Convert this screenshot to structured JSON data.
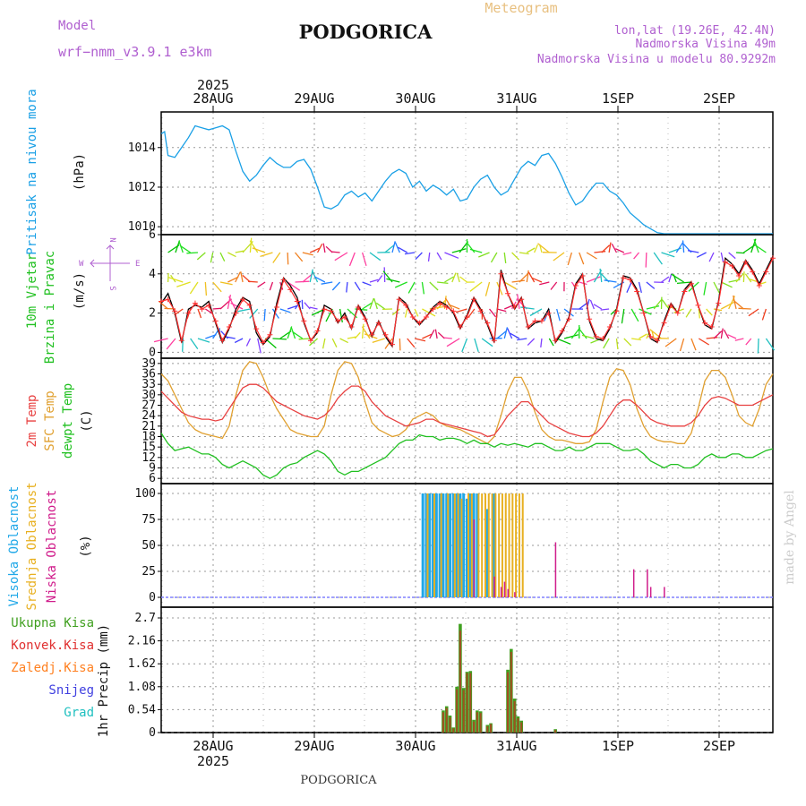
{
  "header": {
    "model_label": "Model",
    "model_name": "wrf−nmm_v3.9.1 e3km",
    "city": "PODGORICA",
    "meteogram": "Meteogram",
    "lonlat": "lon,lat (19.26E, 42.4N)",
    "elevation": "Nadmorska Visina 49m",
    "model_elevation": "Nadmorska Visina u modelu 80.9292m",
    "footer_city": "PODGORICA",
    "credit": "made by Angel"
  },
  "time_axis": {
    "year": "2025",
    "labels": [
      "28AUG",
      "29AUG",
      "30AUG",
      "31AUG",
      "1SEP",
      "2SEP"
    ]
  },
  "colors": {
    "pressure": "#1aa0e6",
    "wind_speed": "#000000",
    "gust": "#ff3030",
    "temp2m": "#e84040",
    "sfc": "#e0a030",
    "dew": "#20c020",
    "cloud_high": "#20a8e8",
    "cloud_mid": "#e8b020",
    "cloud_low": "#d01c8b",
    "precip_total": "#40a020",
    "precip_conv": "#e03030",
    "precip_frz": "#ff8020",
    "snow": "#4040e0",
    "graupel": "#20c0c0"
  },
  "chart_data": [
    {
      "type": "line",
      "id": "pressure",
      "ylabel_name": "Pritisak na nivou mora",
      "ylabel_unit": "(hPa)",
      "ylim": [
        1009.6,
        1015.8
      ],
      "yticks": [
        "1010",
        "1012",
        "1014"
      ],
      "x_hours": [
        0,
        1,
        2,
        4,
        6,
        8,
        10,
        12,
        14,
        16,
        18,
        20,
        22,
        24,
        26,
        28,
        30,
        32,
        34,
        36,
        38,
        40,
        42,
        44,
        46,
        48,
        50,
        52,
        54,
        56,
        58,
        60,
        62,
        64,
        66,
        68,
        70,
        72,
        74,
        76,
        78,
        80,
        82,
        84,
        86,
        88,
        90,
        92,
        94,
        96,
        98,
        100,
        102,
        104,
        106,
        108,
        110,
        112,
        114,
        116,
        118,
        120,
        122,
        124,
        126,
        128,
        130,
        132,
        134,
        136,
        138,
        140,
        142,
        144,
        146,
        148,
        150,
        152,
        154,
        156,
        158,
        160,
        162,
        164,
        166,
        168,
        170,
        172,
        174,
        176,
        178,
        180
      ],
      "values": [
        1014.7,
        1014.8,
        1013.6,
        1013.5,
        1014.0,
        1014.5,
        1015.1,
        1015.0,
        1014.9,
        1015.0,
        1015.1,
        1014.9,
        1013.8,
        1012.8,
        1012.3,
        1012.6,
        1013.1,
        1013.5,
        1013.2,
        1013.0,
        1013.0,
        1013.3,
        1013.4,
        1012.9,
        1012.0,
        1011.0,
        1010.9,
        1011.1,
        1011.6,
        1011.8,
        1011.5,
        1011.7,
        1011.3,
        1011.8,
        1012.3,
        1012.7,
        1012.9,
        1012.7,
        1012.0,
        1012.3,
        1011.8,
        1012.1,
        1011.9,
        1011.6,
        1011.9,
        1011.3,
        1011.4,
        1012.0,
        1012.4,
        1012.6,
        1012.0,
        1011.6,
        1011.8,
        1012.4,
        1013.0,
        1013.3,
        1013.1,
        1013.6,
        1013.7,
        1013.2,
        1012.5,
        1011.7,
        1011.1,
        1011.3,
        1011.8,
        1012.2,
        1012.2,
        1011.8,
        1011.6,
        1011.2,
        1010.7,
        1010.4,
        1010.1,
        1009.9,
        1009.7,
        1009.6,
        1009.6,
        1009.6,
        1009.6,
        1009.6,
        1009.6,
        1009.6,
        1009.6,
        1009.6,
        1009.6,
        1009.6,
        1009.6,
        1009.6,
        1009.6,
        1009.6,
        1009.6,
        1009.6
      ]
    },
    {
      "type": "line",
      "id": "wind",
      "ylabel_name": "10m Vjetar",
      "ylabel_name2": "Brzina i Pravac",
      "ylabel_unit": "(m/s)",
      "compass": {
        "n": "N",
        "s": "S",
        "e": "E",
        "w": "W"
      },
      "ylim": [
        -0.3,
        6
      ],
      "yticks": [
        "0",
        "2",
        "4",
        "6"
      ],
      "x_hours": [
        0,
        2,
        4,
        6,
        8,
        10,
        12,
        14,
        16,
        18,
        20,
        22,
        24,
        26,
        28,
        30,
        32,
        34,
        36,
        38,
        40,
        42,
        44,
        46,
        48,
        50,
        52,
        54,
        56,
        58,
        60,
        62,
        64,
        66,
        68,
        70,
        72,
        74,
        76,
        78,
        80,
        82,
        84,
        86,
        88,
        90,
        92,
        94,
        96,
        98,
        100,
        102,
        104,
        106,
        108,
        110,
        112,
        114,
        116,
        118,
        120,
        122,
        124,
        126,
        128,
        130,
        132,
        134,
        136,
        138,
        140,
        142,
        144,
        146,
        148,
        150,
        152,
        154,
        156,
        158,
        160,
        162,
        164,
        166,
        168,
        170,
        172,
        174,
        176,
        178,
        180
      ],
      "speed": [
        2.5,
        3.0,
        2.0,
        0.5,
        2.2,
        2.4,
        2.3,
        2.6,
        1.5,
        0.5,
        1.2,
        2.2,
        2.8,
        2.6,
        1.0,
        0.4,
        0.8,
        2.5,
        3.8,
        3.4,
        2.8,
        1.5,
        0.6,
        1.0,
        2.4,
        2.2,
        1.5,
        2.0,
        1.2,
        2.4,
        1.8,
        0.8,
        1.6,
        0.8,
        0.3,
        2.8,
        2.5,
        1.8,
        1.4,
        1.8,
        2.3,
        2.6,
        2.4,
        2.0,
        1.2,
        1.9,
        2.8,
        2.2,
        1.4,
        0.5,
        4.2,
        3.0,
        2.2,
        2.8,
        1.2,
        1.5,
        1.6,
        2.2,
        0.5,
        1.0,
        1.8,
        3.5,
        4.0,
        1.6,
        0.7,
        0.6,
        1.2,
        2.2,
        3.9,
        3.8,
        3.2,
        2.0,
        0.7,
        0.5,
        1.6,
        2.5,
        2.0,
        3.2,
        3.6,
        2.4,
        1.4,
        1.2,
        2.6,
        4.8,
        4.5,
        4.0,
        4.7,
        4.2,
        3.5,
        4.2,
        4.9
      ],
      "gust": [
        2.6,
        2.7,
        2.1,
        0.6,
        2.0,
        2.5,
        2.2,
        2.4,
        1.6,
        0.6,
        1.3,
        2.0,
        2.7,
        2.4,
        1.2,
        0.5,
        0.9,
        2.3,
        3.7,
        3.2,
        2.6,
        1.6,
        0.6,
        1.1,
        2.2,
        2.1,
        1.6,
        1.8,
        1.3,
        2.3,
        1.7,
        0.9,
        1.5,
        0.9,
        0.4,
        2.7,
        2.4,
        1.8,
        1.5,
        1.8,
        2.2,
        2.5,
        2.3,
        2.1,
        1.3,
        1.8,
        2.7,
        2.1,
        1.5,
        0.6,
        4.0,
        3.0,
        2.3,
        2.7,
        1.3,
        1.6,
        1.6,
        2.0,
        0.6,
        1.1,
        1.7,
        3.4,
        3.9,
        1.7,
        0.8,
        0.7,
        1.3,
        2.1,
        3.8,
        3.7,
        3.1,
        2.0,
        0.8,
        0.6,
        1.5,
        2.4,
        2.0,
        3.1,
        3.5,
        2.4,
        1.5,
        1.3,
        2.5,
        4.6,
        4.4,
        3.9,
        4.6,
        4.1,
        3.4,
        4.1,
        4.8
      ],
      "arrow_colors": [
        "#00c000",
        "#20e020",
        "#80e020",
        "#c0e020",
        "#e0e020",
        "#f0c020",
        "#f08020",
        "#f04020",
        "#e01060",
        "#ff40a0",
        "#20c0c0",
        "#2080ff",
        "#4040ff",
        "#8040ff"
      ]
    },
    {
      "type": "line",
      "id": "temperature",
      "ylabel_name": "2m Temp",
      "ylabel_name2": "SFC Temp",
      "ylabel_name3": "dewpt Temp",
      "ylabel_unit": "(C)",
      "ylim": [
        4.5,
        40.5
      ],
      "yticks": [
        "6",
        "9",
        "12",
        "15",
        "18",
        "21",
        "24",
        "27",
        "30",
        "33",
        "36",
        "39"
      ],
      "x_hours": [
        0,
        2,
        4,
        6,
        8,
        10,
        12,
        14,
        16,
        18,
        20,
        22,
        24,
        26,
        28,
        30,
        32,
        34,
        36,
        38,
        40,
        42,
        44,
        46,
        48,
        50,
        52,
        54,
        56,
        58,
        60,
        62,
        64,
        66,
        68,
        70,
        72,
        74,
        76,
        78,
        80,
        82,
        84,
        86,
        88,
        90,
        92,
        94,
        96,
        98,
        100,
        102,
        104,
        106,
        108,
        110,
        112,
        114,
        116,
        118,
        120,
        122,
        124,
        126,
        128,
        130,
        132,
        134,
        136,
        138,
        140,
        142,
        144,
        146,
        148,
        150,
        152,
        154,
        156,
        158,
        160,
        162,
        164,
        166,
        168,
        170,
        172,
        174,
        176,
        178,
        180
      ],
      "temp2m": [
        31,
        29,
        27,
        25,
        24,
        23.5,
        23,
        23,
        22.5,
        23,
        26,
        29,
        32,
        33,
        33,
        32,
        30,
        28,
        27,
        26,
        25,
        24,
        23.5,
        23,
        24,
        26,
        29,
        31,
        32.5,
        32.5,
        31,
        28,
        26,
        24,
        23,
        22,
        21,
        21.5,
        22,
        23,
        23,
        22,
        21.5,
        21,
        20.5,
        20,
        19.5,
        19,
        18,
        18.5,
        21,
        24,
        26,
        28,
        28,
        26,
        24,
        22,
        21,
        20,
        19,
        18.5,
        18,
        18,
        19,
        21,
        24,
        27,
        28.5,
        28.5,
        27,
        25,
        23,
        22,
        21.5,
        21,
        21,
        21,
        22,
        24,
        27,
        29,
        29.5,
        29,
        28,
        27,
        27,
        27,
        28,
        29,
        30
      ],
      "sfc": [
        36,
        34,
        30,
        26,
        22,
        20,
        19,
        18.5,
        18,
        17.5,
        21,
        30,
        37,
        39.5,
        39,
        35,
        30,
        26,
        23,
        20,
        19,
        18.5,
        18,
        18,
        21,
        30,
        37,
        39.5,
        39,
        35,
        28,
        22,
        20,
        19,
        18,
        18.5,
        20,
        23,
        24,
        25,
        24,
        22,
        21,
        20.5,
        20,
        19,
        18,
        17,
        16,
        18,
        24,
        31,
        35,
        35,
        31,
        25,
        20,
        18,
        17,
        17,
        16.5,
        16,
        16,
        16.5,
        20,
        28,
        35,
        37.5,
        37,
        33,
        26,
        21,
        18,
        17,
        16.5,
        16.5,
        16,
        16,
        19,
        26,
        34,
        37,
        37,
        35,
        30,
        24,
        22,
        21,
        26,
        33,
        36
      ],
      "dewpt": [
        19,
        16,
        14,
        14.5,
        15,
        14,
        13,
        13,
        12,
        10,
        9,
        10,
        11,
        10,
        9,
        7,
        6,
        7,
        9,
        10,
        10.5,
        12,
        13,
        14,
        13,
        11,
        8,
        7,
        8,
        8,
        9,
        10,
        11,
        12,
        14,
        16,
        17,
        17,
        18.5,
        18,
        18,
        17,
        17.5,
        17.5,
        17,
        16,
        17,
        16,
        16,
        15,
        16,
        15.5,
        16,
        15.5,
        15,
        16,
        16,
        15,
        14,
        14,
        15,
        14,
        14,
        15,
        16,
        16,
        16,
        15,
        14,
        14,
        14.5,
        13,
        11,
        10,
        9,
        10,
        10,
        9,
        9,
        10,
        12,
        13,
        12,
        12,
        13,
        13,
        12,
        12,
        13,
        14,
        14.5
      ]
    },
    {
      "type": "bar",
      "id": "clouds",
      "ylabel_name": "Visoka Oblacnost",
      "ylabel_name2": "Srednja Oblacnost",
      "ylabel_name3": "Niska Oblacnost",
      "ylabel_unit": "(%)",
      "ylim": [
        0,
        100
      ],
      "yticks": [
        "0",
        "25",
        "50",
        "75",
        "100"
      ],
      "high": [
        [
          77,
          100
        ],
        [
          78,
          100
        ],
        [
          79,
          100
        ],
        [
          80,
          100
        ],
        [
          81,
          100
        ],
        [
          82,
          100
        ],
        [
          83,
          100
        ],
        [
          84,
          100
        ],
        [
          85,
          100
        ],
        [
          86,
          100
        ],
        [
          87,
          100
        ],
        [
          88,
          100
        ],
        [
          89,
          100
        ],
        [
          90,
          95
        ],
        [
          91,
          100
        ],
        [
          92,
          100
        ],
        [
          93,
          100
        ],
        [
          96,
          85
        ],
        [
          98,
          100
        ]
      ],
      "mid": [
        [
          78,
          100
        ],
        [
          80,
          100
        ],
        [
          82,
          100
        ],
        [
          84,
          100
        ],
        [
          86,
          100
        ],
        [
          87,
          100
        ],
        [
          88,
          95
        ],
        [
          90,
          100
        ],
        [
          91,
          100
        ],
        [
          93,
          100
        ],
        [
          94,
          100
        ],
        [
          95,
          100
        ],
        [
          96,
          100
        ],
        [
          97,
          100
        ],
        [
          98,
          100
        ],
        [
          99,
          100
        ],
        [
          100,
          100
        ],
        [
          101,
          100
        ],
        [
          102,
          100
        ],
        [
          103,
          100
        ],
        [
          104,
          100
        ],
        [
          105,
          100
        ],
        [
          106,
          100
        ]
      ],
      "low": [
        [
          92,
          75
        ],
        [
          98,
          20
        ],
        [
          100,
          10
        ],
        [
          101,
          15
        ],
        [
          102,
          8
        ],
        [
          104,
          5
        ],
        [
          116,
          53
        ],
        [
          139,
          27
        ],
        [
          143,
          27
        ],
        [
          144,
          10
        ],
        [
          148,
          10
        ]
      ]
    },
    {
      "type": "bar",
      "id": "precip",
      "ylabel_name": "1hr Precip",
      "ylabel_unit": "(mm)",
      "legend": [
        "Ukupna Kisa",
        "Konvek.Kisa",
        "Zaledj.Kisa",
        "Snijeg",
        "Grad"
      ],
      "ylim": [
        0,
        2.7
      ],
      "yticks": [
        "0",
        "0.54",
        "1.08",
        "1.62",
        "2.16",
        "2.7"
      ],
      "total": [
        [
          83,
          0.52
        ],
        [
          84,
          0.62
        ],
        [
          85,
          0.4
        ],
        [
          86,
          0.12
        ],
        [
          87,
          1.08
        ],
        [
          88,
          2.56
        ],
        [
          89,
          1.05
        ],
        [
          90,
          1.43
        ],
        [
          91,
          1.45
        ],
        [
          92,
          0.3
        ],
        [
          93,
          0.52
        ],
        [
          94,
          0.5
        ],
        [
          96,
          0.18
        ],
        [
          97,
          0.22
        ],
        [
          102,
          1.48
        ],
        [
          103,
          1.97
        ],
        [
          104,
          0.8
        ],
        [
          105,
          0.38
        ],
        [
          106,
          0.28
        ],
        [
          116,
          0.08
        ]
      ],
      "conv": [
        [
          83,
          0.48
        ],
        [
          84,
          0.58
        ],
        [
          85,
          0.36
        ],
        [
          86,
          0.1
        ],
        [
          87,
          1.02
        ],
        [
          88,
          2.4
        ],
        [
          89,
          1.0
        ],
        [
          90,
          1.4
        ],
        [
          91,
          1.4
        ],
        [
          92,
          0.26
        ],
        [
          93,
          0.48
        ],
        [
          94,
          0.46
        ],
        [
          96,
          0.15
        ],
        [
          97,
          0.2
        ],
        [
          102,
          1.42
        ],
        [
          103,
          1.9
        ],
        [
          104,
          0.74
        ],
        [
          105,
          0.34
        ],
        [
          106,
          0.24
        ],
        [
          116,
          0.06
        ]
      ]
    }
  ]
}
